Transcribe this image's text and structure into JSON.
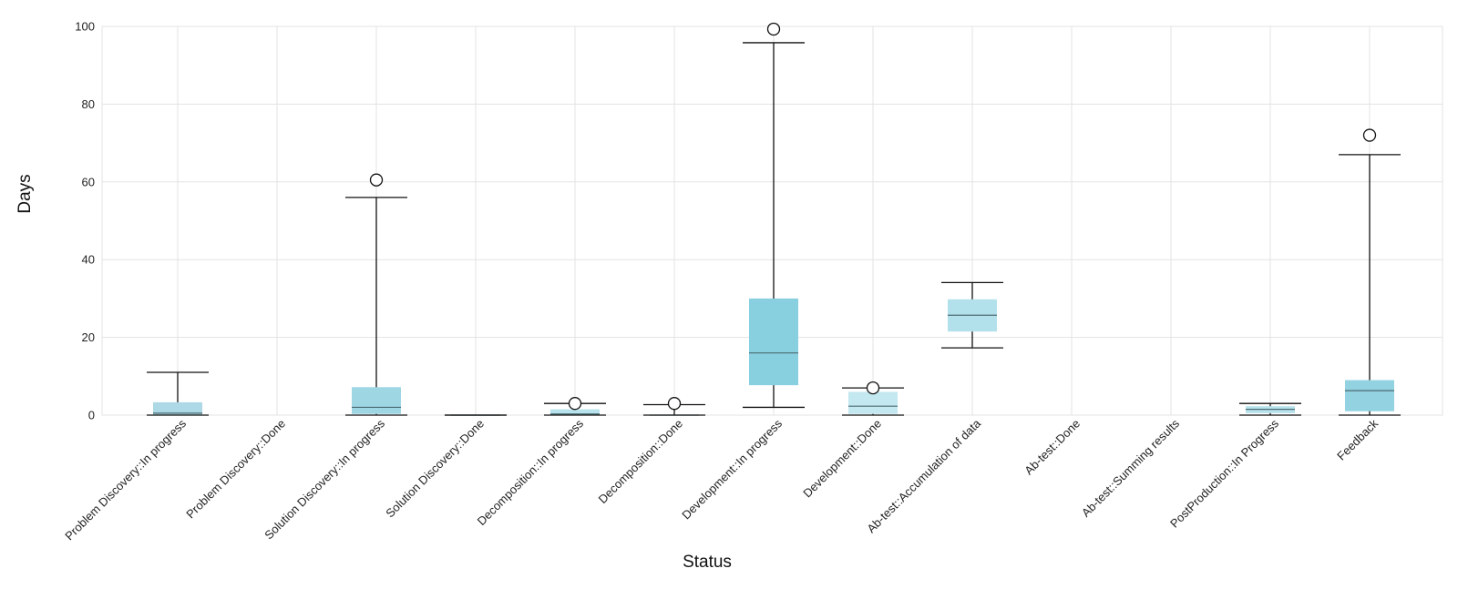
{
  "chart_data": {
    "type": "box",
    "xlabel": "Status",
    "ylabel": "Days",
    "ylim": [
      0,
      100
    ],
    "yticks": [
      0,
      20,
      40,
      60,
      80,
      100
    ],
    "grid": true,
    "categories": [
      "Problem Discovery::In progress",
      "Problem Discovery::Done",
      "Solution Discovery::In progress",
      "Solution Discovery::Done",
      "Decomposition::In progress",
      "Decomposition::Done",
      "Development::In progress",
      "Development::Done",
      "Ab-test::Accumulation of data",
      "Ab-test::Done",
      "Ab-test::Summing results",
      "PostProduction::In Progress",
      "Feedback"
    ],
    "boxes": [
      {
        "min": 0,
        "q1": 0,
        "median": 0.5,
        "q3": 3.3,
        "max": 11,
        "outliers": [],
        "color": "#add8e6"
      },
      null,
      {
        "min": 0,
        "q1": 0.3,
        "median": 2,
        "q3": 7.2,
        "max": 56,
        "outliers": [
          60.5
        ],
        "color": "#9fd6e3"
      },
      {
        "min": 0,
        "q1": 0,
        "median": 0,
        "q3": 0,
        "max": 0,
        "outliers": [],
        "color": "#9fd6e3"
      },
      {
        "min": 0,
        "q1": 0,
        "median": 0.3,
        "q3": 1.5,
        "max": 3,
        "outliers": [
          3
        ],
        "color": "#b8e3ec"
      },
      {
        "min": 0,
        "q1": 0,
        "median": 0,
        "q3": 0,
        "max": 2.7,
        "outliers": [
          3
        ],
        "color": "#b8e3ec"
      },
      {
        "min": 2,
        "q1": 7.7,
        "median": 16,
        "q3": 30,
        "max": 95.8,
        "outliers": [
          99.3
        ],
        "color": "#88cfdf"
      },
      {
        "min": 0,
        "q1": 0.3,
        "median": 2.3,
        "q3": 6,
        "max": 7,
        "outliers": [
          7
        ],
        "color": "#c3e8ef"
      },
      {
        "min": 17.3,
        "q1": 21.5,
        "median": 25.7,
        "q3": 29.8,
        "max": 34.1,
        "outliers": [],
        "color": "#b3e1eb"
      },
      null,
      null,
      {
        "min": 0,
        "q1": 0.5,
        "median": 1.5,
        "q3": 2.3,
        "max": 3,
        "outliers": [],
        "color": "#b8e3ec"
      },
      {
        "min": 0,
        "q1": 1,
        "median": 6.3,
        "q3": 9,
        "max": 67,
        "outliers": [
          72
        ],
        "color": "#93d2e1"
      }
    ]
  }
}
